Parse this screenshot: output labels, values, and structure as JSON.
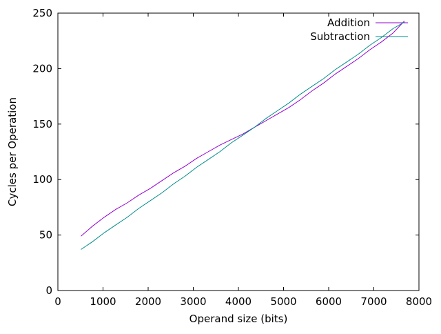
{
  "chart_data": {
    "type": "line",
    "title": "",
    "xlabel": "Operand size (bits)",
    "ylabel": "Cycles per Operation",
    "xlim": [
      0,
      8000
    ],
    "ylim": [
      0,
      250
    ],
    "xticks": [
      0,
      1000,
      2000,
      3000,
      4000,
      5000,
      6000,
      7000,
      8000
    ],
    "yticks": [
      0,
      50,
      100,
      150,
      200,
      250
    ],
    "grid": false,
    "legend_position": "top-right-inside",
    "background_color": "#ffffff",
    "border_color": "#000000",
    "x": [
      512,
      768,
      1024,
      1280,
      1536,
      1792,
      2048,
      2304,
      2560,
      2816,
      3072,
      3328,
      3584,
      3840,
      4096,
      4352,
      4608,
      4864,
      5120,
      5376,
      5632,
      5888,
      6144,
      6400,
      6656,
      6912,
      7168,
      7424,
      7680
    ],
    "series": [
      {
        "name": "Addition",
        "color": "#9400d3",
        "values": [
          49,
          58,
          66,
          73,
          79,
          86,
          92,
          99,
          106,
          112,
          119,
          125,
          131,
          136,
          141,
          147,
          153,
          159,
          165,
          172,
          180,
          187,
          195,
          202,
          209,
          217,
          224,
          232,
          243
        ]
      },
      {
        "name": "Subtraction",
        "color": "#008b8b",
        "values": [
          37,
          44,
          52,
          59,
          66,
          74,
          81,
          88,
          96,
          103,
          111,
          118,
          125,
          133,
          140,
          147,
          155,
          162,
          169,
          177,
          184,
          191,
          199,
          206,
          213,
          221,
          228,
          236,
          242
        ]
      }
    ]
  }
}
